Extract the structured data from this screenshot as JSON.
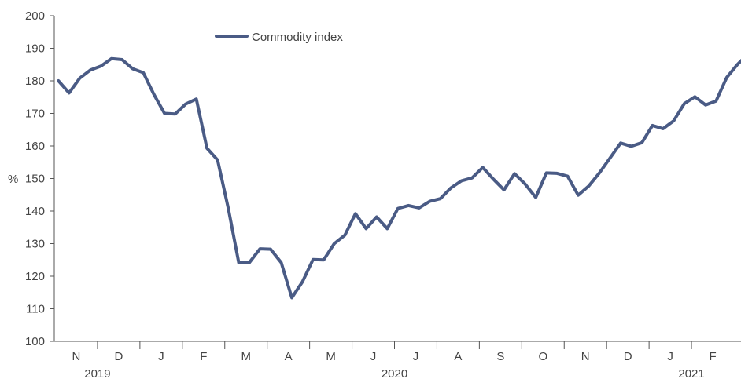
{
  "chart_data": {
    "type": "line",
    "ylabel": "%",
    "ylim": [
      100,
      200
    ],
    "y_ticks": [
      100,
      110,
      120,
      130,
      140,
      150,
      160,
      170,
      180,
      190,
      200
    ],
    "months": [
      "N",
      "D",
      "J",
      "F",
      "M",
      "A",
      "M",
      "J",
      "J",
      "A",
      "S",
      "O",
      "N",
      "D",
      "J",
      "F"
    ],
    "years": [
      "2019",
      "2020",
      "2021"
    ],
    "legend_position": "top-center",
    "grid": false,
    "series": [
      {
        "name": "Commodity index",
        "color": "#4a5b85",
        "x": [
          0.08,
          0.33,
          0.58,
          0.83,
          1.08,
          1.33,
          1.58,
          1.83,
          2.08,
          2.33,
          2.58,
          2.83,
          3.08,
          3.33,
          3.58,
          3.83,
          4.08,
          4.33,
          4.58,
          4.83,
          5.08,
          5.33,
          5.58,
          5.83,
          6.08,
          6.33,
          6.58,
          6.83,
          7.08,
          7.33,
          7.58,
          7.83,
          8.08,
          8.33,
          8.58,
          8.83,
          9.08,
          9.33,
          9.58,
          9.83,
          10.08,
          10.33,
          10.58,
          10.83,
          11.08,
          11.33,
          11.58,
          11.83,
          12.08,
          12.33,
          12.58,
          12.83,
          13.08,
          13.33,
          13.58,
          13.83,
          14.08,
          14.33,
          14.58,
          14.83,
          15.08,
          15.33,
          15.58,
          15.83
        ],
        "values": [
          180.0,
          176.3,
          180.8,
          183.3,
          184.5,
          186.8,
          186.5,
          183.7,
          182.5,
          175.8,
          170.0,
          169.8,
          172.9,
          174.4,
          159.3,
          155.7,
          141.0,
          124.2,
          124.2,
          128.4,
          128.3,
          124.2,
          113.4,
          118.3,
          125.1,
          125.0,
          130.0,
          132.6,
          139.2,
          134.6,
          138.2,
          134.6,
          140.8,
          141.7,
          141.0,
          143.0,
          143.8,
          147.1,
          149.3,
          150.2,
          153.4,
          149.8,
          146.5,
          151.5,
          148.3,
          144.2,
          151.7,
          151.6,
          150.7,
          144.9,
          147.7,
          151.7,
          156.3,
          160.9,
          159.9,
          161.0,
          166.3,
          165.3,
          167.7,
          173.0,
          175.1,
          172.6,
          173.8,
          181.0
        ]
      }
    ]
  },
  "series_extra": [
    185.0,
    188.2
  ]
}
